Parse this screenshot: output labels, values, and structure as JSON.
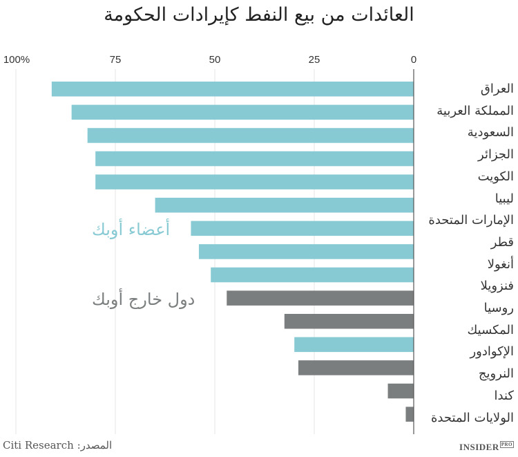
{
  "chart_data": {
    "type": "bar",
    "orientation": "horizontal",
    "direction": "right-to-left",
    "title": "العائدات من بيع النفط كإيرادات الحكومة",
    "categories": [
      "العراق",
      "المملكة العربية السعودية",
      "الجزائر",
      "الكويت",
      "ليبيا",
      "الإمارات المتحدة",
      "قطر",
      "أنغولا",
      "فنزويلا",
      "روسيا",
      "المكسيك",
      "الإكوادور",
      "النرويج",
      "كندا",
      "الولايات المتحدة"
    ],
    "label_lines": [
      "العراق",
      "المملكة العربية",
      "السعودية",
      "الجزائر",
      "الكويت",
      "ليبيا",
      "الإمارات المتحدة",
      "قطر",
      "أنغولا",
      "فنزويلا",
      "روسيا",
      "المكسيك",
      "الإكوادور",
      "النرويج",
      "كندا",
      "الولايات المتحدة"
    ],
    "values": [
      91,
      86,
      82,
      80,
      80,
      65,
      56,
      54,
      51,
      47,
      32.5,
      30,
      29,
      6.5,
      2
    ],
    "groups": [
      "opec",
      "opec",
      "opec",
      "opec",
      "opec",
      "opec",
      "opec",
      "opec",
      "opec",
      "non-opec",
      "non-opec",
      "opec",
      "non-opec",
      "non-opec",
      "non-opec"
    ],
    "xlim": [
      0,
      100
    ],
    "ticks": [
      {
        "value": 100,
        "label": "100%"
      },
      {
        "value": 75,
        "label": "75"
      },
      {
        "value": 50,
        "label": "50"
      },
      {
        "value": 25,
        "label": "25"
      },
      {
        "value": 0,
        "label": "0"
      }
    ],
    "grid": true,
    "legend": [
      {
        "key": "opec",
        "label": "أعضاء أوبك",
        "color": "#88cad4"
      },
      {
        "key": "non-opec",
        "label": "دول خارج أوبك",
        "color": "#7b7e7f"
      }
    ]
  },
  "footer": {
    "source": "المصدر: Citi Research",
    "logo": "INSIDER",
    "logo_badge": "PRO"
  }
}
